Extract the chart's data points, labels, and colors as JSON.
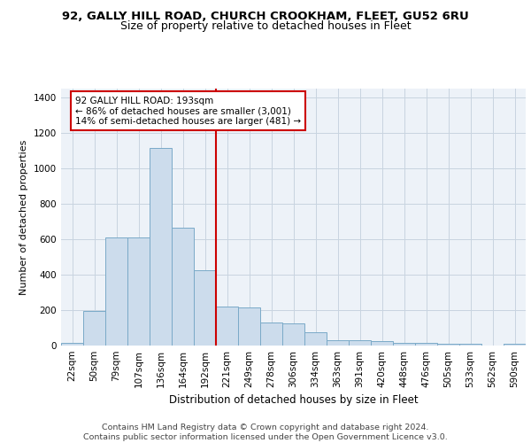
{
  "title1": "92, GALLY HILL ROAD, CHURCH CROOKHAM, FLEET, GU52 6RU",
  "title2": "Size of property relative to detached houses in Fleet",
  "xlabel": "Distribution of detached houses by size in Fleet",
  "ylabel": "Number of detached properties",
  "bar_labels": [
    "22sqm",
    "50sqm",
    "79sqm",
    "107sqm",
    "136sqm",
    "164sqm",
    "192sqm",
    "221sqm",
    "249sqm",
    "278sqm",
    "306sqm",
    "334sqm",
    "363sqm",
    "391sqm",
    "420sqm",
    "448sqm",
    "476sqm",
    "505sqm",
    "533sqm",
    "562sqm",
    "590sqm"
  ],
  "bar_heights": [
    15,
    195,
    610,
    610,
    1115,
    665,
    425,
    220,
    215,
    130,
    125,
    75,
    30,
    30,
    25,
    15,
    15,
    10,
    10,
    0,
    10
  ],
  "bar_color": "#ccdcec",
  "bar_edge_color": "#7aaac8",
  "marker_color": "#cc0000",
  "annotation_text": "92 GALLY HILL ROAD: 193sqm\n← 86% of detached houses are smaller (3,001)\n14% of semi-detached houses are larger (481) →",
  "annotation_box_color": "white",
  "annotation_box_edge": "#cc0000",
  "ylim": [
    0,
    1450
  ],
  "yticks": [
    0,
    200,
    400,
    600,
    800,
    1000,
    1200,
    1400
  ],
  "footer_text": "Contains HM Land Registry data © Crown copyright and database right 2024.\nContains public sector information licensed under the Open Government Licence v3.0.",
  "bg_color": "#edf2f8",
  "grid_color": "#c8d4e0",
  "title1_fontsize": 9.5,
  "title2_fontsize": 9,
  "xlabel_fontsize": 8.5,
  "ylabel_fontsize": 8,
  "tick_fontsize": 7.5,
  "footer_fontsize": 6.8,
  "annot_fontsize": 7.5
}
